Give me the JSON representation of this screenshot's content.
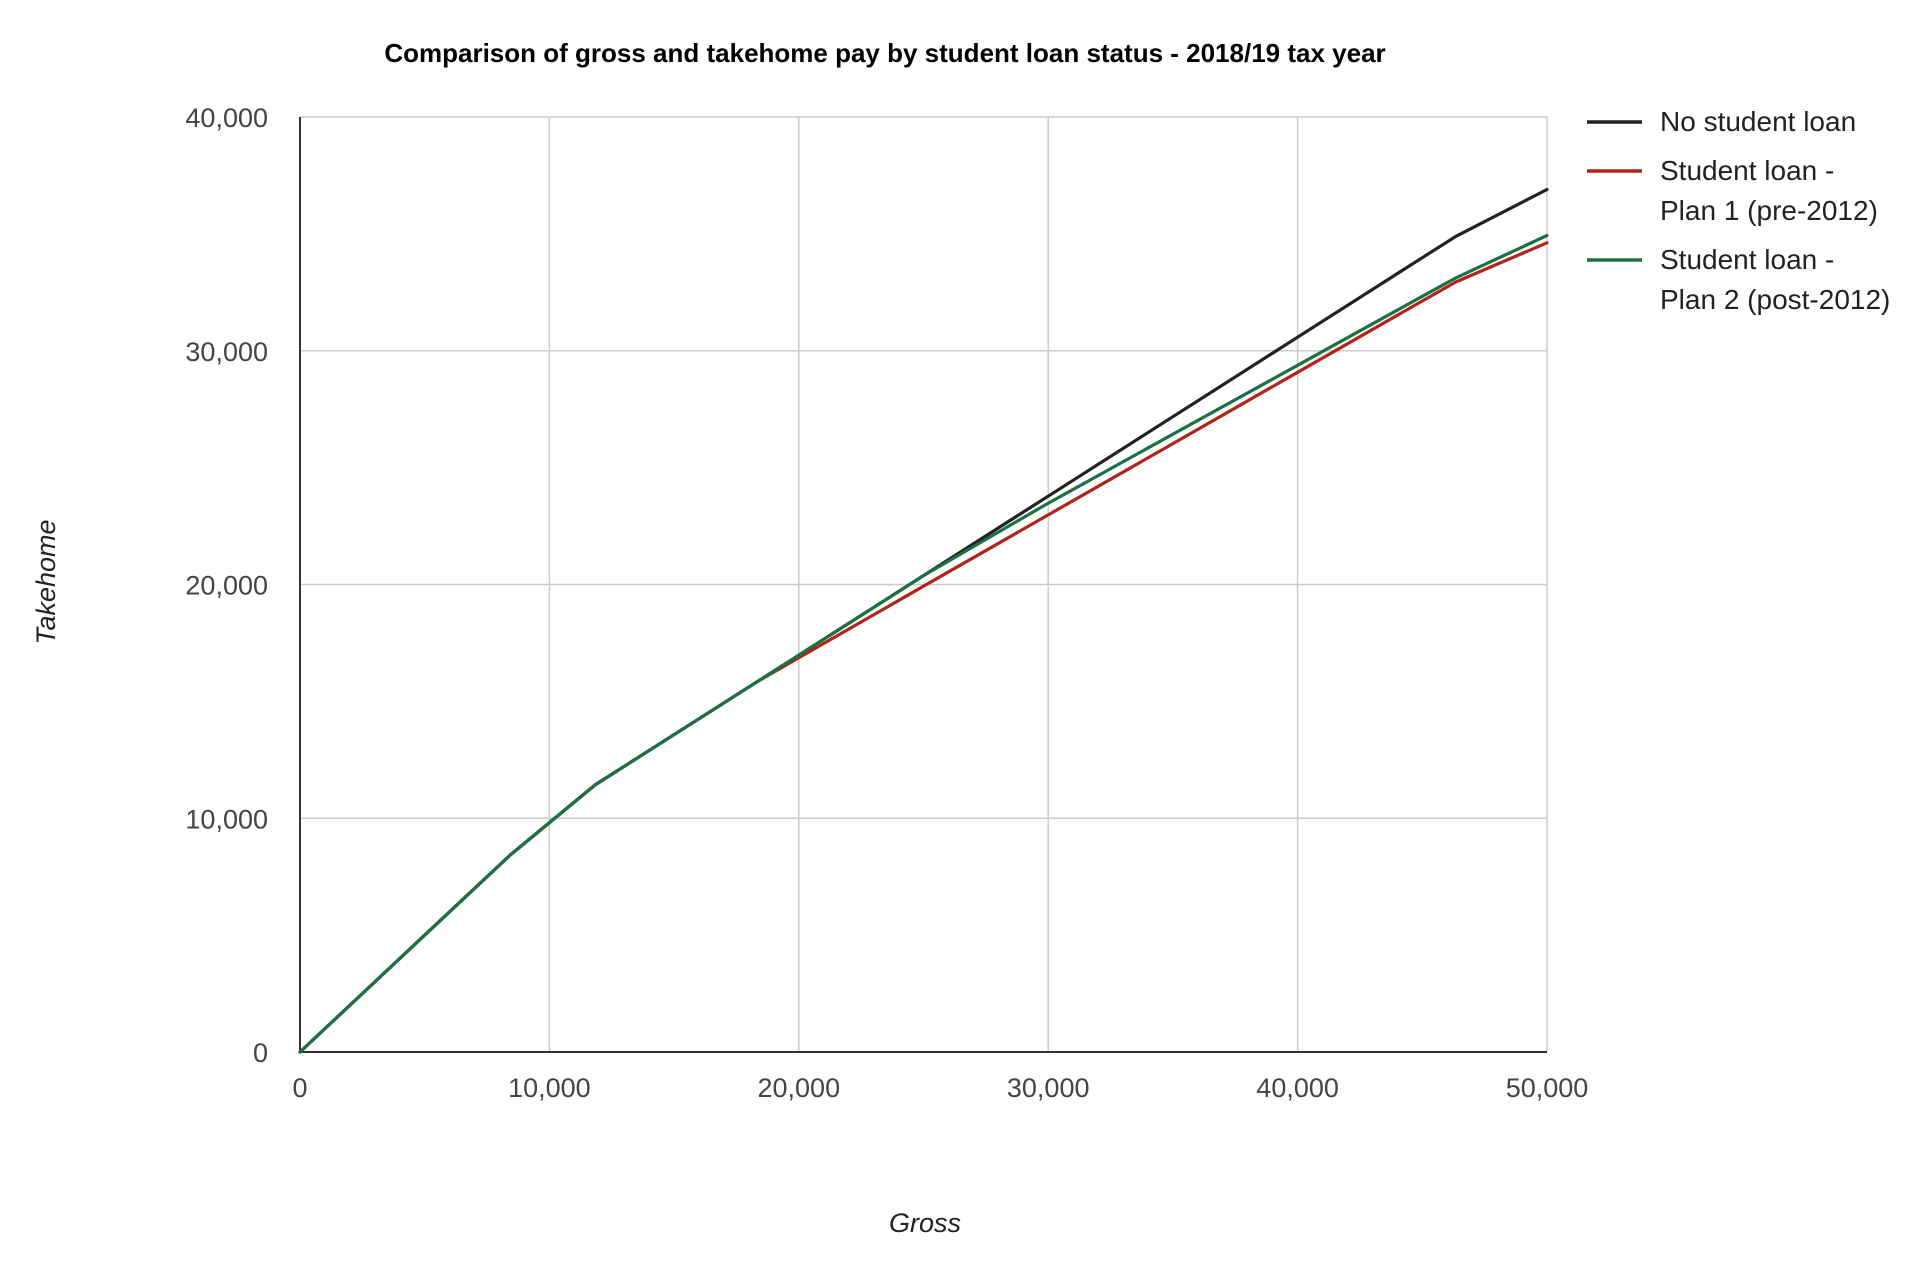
{
  "chart_data": {
    "type": "line",
    "title": "Comparison of gross and takehome pay by student loan status - 2018/19 tax year",
    "xlabel": "Gross",
    "ylabel": "Takehome",
    "xlim": [
      0,
      50000
    ],
    "ylim": [
      0,
      40000
    ],
    "x_ticks": [
      0,
      10000,
      20000,
      30000,
      40000,
      50000
    ],
    "y_ticks": [
      0,
      10000,
      20000,
      30000,
      40000
    ],
    "x_tick_labels": [
      "0",
      "10,000",
      "20,000",
      "30,000",
      "40,000",
      "50,000"
    ],
    "y_tick_labels": [
      "0",
      "10,000",
      "20,000",
      "30,000",
      "40,000"
    ],
    "grid": true,
    "legend_position": "right",
    "series": [
      {
        "name": "No student loan",
        "color": "#222222",
        "points": [
          [
            0,
            0
          ],
          [
            8424,
            8424
          ],
          [
            11850,
            11438
          ],
          [
            18330,
            15843
          ],
          [
            25000,
            20379
          ],
          [
            30000,
            23779
          ],
          [
            35000,
            27179
          ],
          [
            40000,
            30579
          ],
          [
            45000,
            33979
          ],
          [
            46350,
            34897
          ],
          [
            50000,
            36897
          ]
        ]
      },
      {
        "name": "Student loan - Plan 1 (pre-2012)",
        "color": "#b0241c",
        "points": [
          [
            0,
            0
          ],
          [
            8424,
            8424
          ],
          [
            11850,
            11438
          ],
          [
            18330,
            15843
          ],
          [
            20000,
            16867
          ],
          [
            25000,
            19929
          ],
          [
            30000,
            22979
          ],
          [
            35000,
            26029
          ],
          [
            40000,
            29079
          ],
          [
            45000,
            32129
          ],
          [
            46350,
            32947
          ],
          [
            50000,
            34619
          ]
        ]
      },
      {
        "name": "Student loan - Plan 2 (post-2012)",
        "color": "#1b7044",
        "points": [
          [
            0,
            0
          ],
          [
            8424,
            8424
          ],
          [
            11850,
            11438
          ],
          [
            18330,
            15843
          ],
          [
            25000,
            20379
          ],
          [
            30000,
            23479
          ],
          [
            35000,
            26429
          ],
          [
            40000,
            29379
          ],
          [
            45000,
            32329
          ],
          [
            46350,
            33122
          ],
          [
            50000,
            34929
          ]
        ]
      }
    ]
  }
}
